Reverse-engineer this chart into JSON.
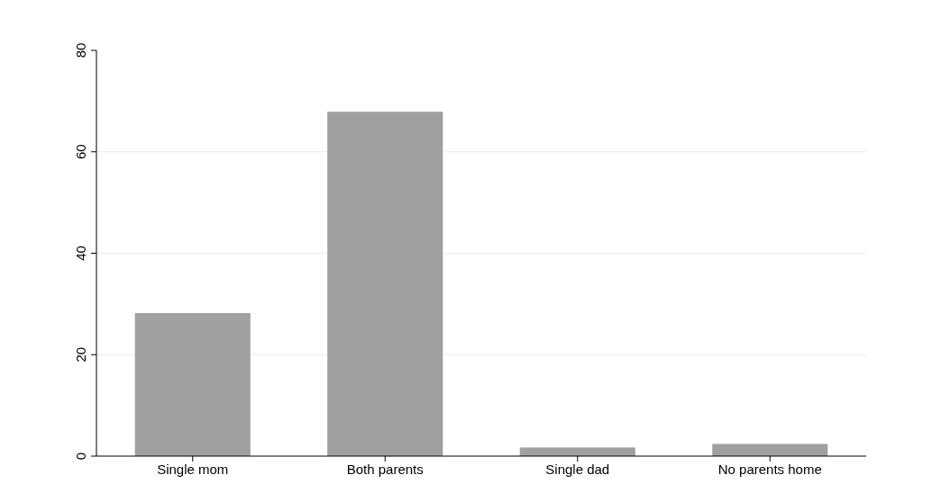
{
  "chart_data": {
    "type": "bar",
    "categories": [
      "Single mom",
      "Both parents",
      "Single dad",
      "No parents home"
    ],
    "values": [
      28.2,
      67.9,
      1.7,
      2.4
    ],
    "color": "#a0a0a0",
    "ylim": [
      0,
      80
    ],
    "yticks": [
      0,
      20,
      40,
      60,
      80
    ],
    "grid": "y"
  }
}
